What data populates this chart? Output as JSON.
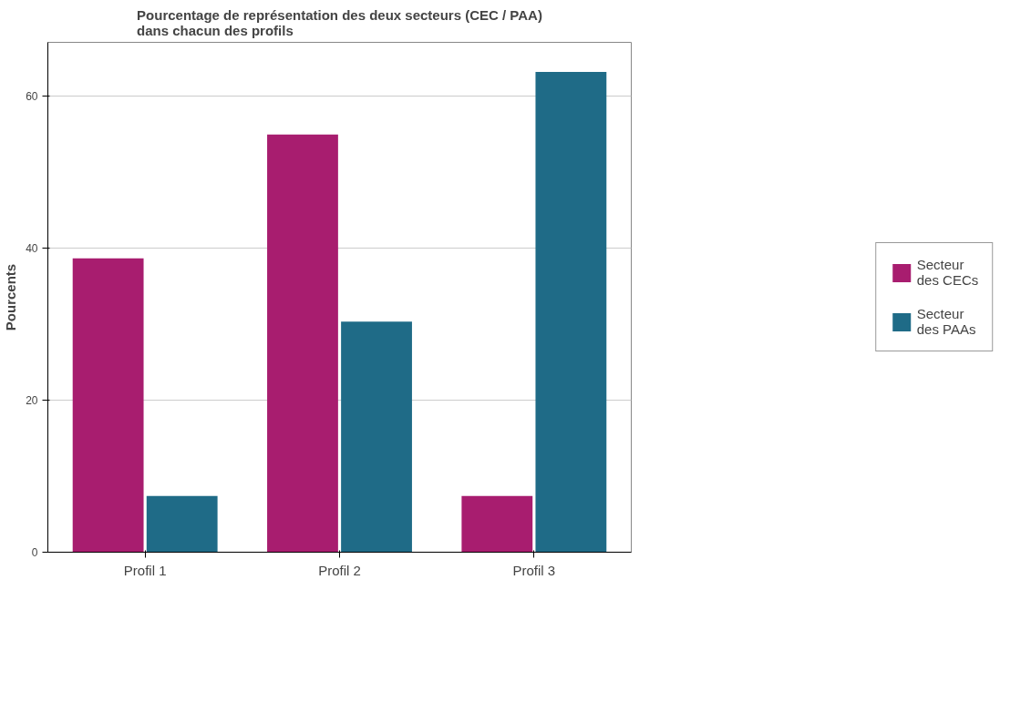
{
  "chart_data": {
    "type": "bar",
    "title": "Pourcentage de représentation des deux secteurs (CEC / PAA) dans chacun des profils",
    "ylabel": "Pourcents",
    "categories": [
      "Profil 1",
      "Profil 2",
      "Profil 3"
    ],
    "series": [
      {
        "name": "Secteur des CECs",
        "color": "#a81d6f",
        "values": [
          38.6,
          54.9,
          7.4
        ]
      },
      {
        "name": "Secteur des PAAs",
        "color": "#1f6b87",
        "values": [
          7.4,
          30.3,
          63.1
        ]
      }
    ],
    "ylim": [
      0,
      67
    ],
    "yticks": [
      0,
      20,
      40,
      60
    ],
    "grid": "y",
    "legend": "right"
  }
}
